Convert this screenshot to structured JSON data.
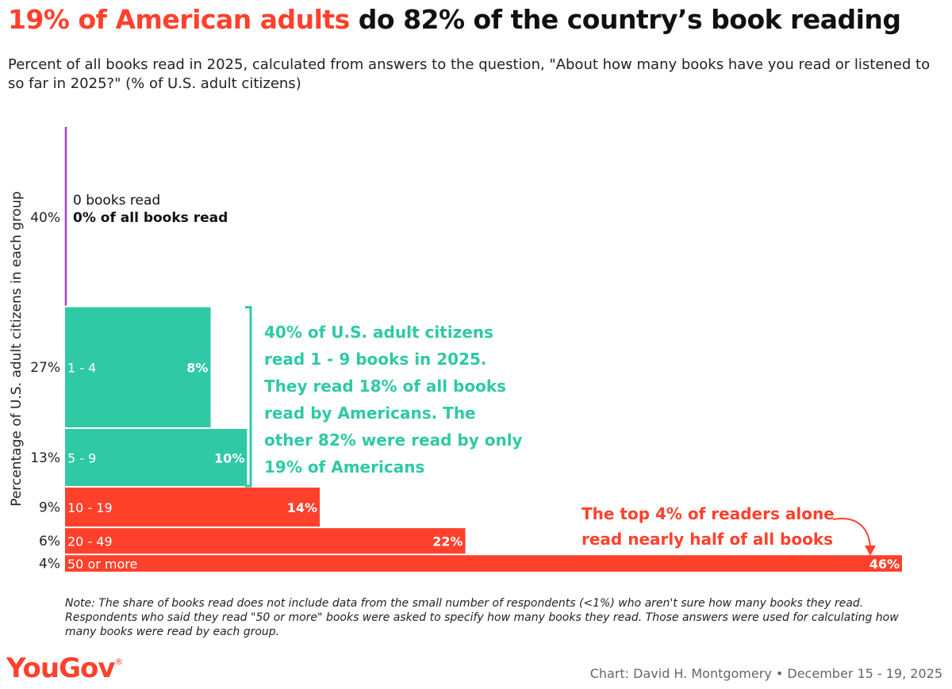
{
  "header": {
    "title_highlight": "19% of American adults",
    "title_rest": " do 82% of the country’s book reading",
    "subtitle": "Percent of all books read in 2025, calculated from answers to the question, \"About how many books have you read or listened to so far in 2025?\" (% of U.S. adult citizens)"
  },
  "colors": {
    "accent_red": "#ff412c",
    "teal": "#2fc9a5",
    "purple": "#a33fd6"
  },
  "chart_data": {
    "type": "bar",
    "title": "19% of American adults do 82% of the country’s book reading",
    "ylabel": "Percentage of U.S. adult citizens in each group",
    "bar_height_represents": "share of U.S. adult citizens in each group",
    "bar_width_represents": "share of all books read",
    "categories": [
      "0 books read",
      "1 - 4",
      "5 - 9",
      "10 - 19",
      "20 - 49",
      "50 or more"
    ],
    "share_of_adults": [
      40,
      27,
      13,
      9,
      6,
      4
    ],
    "share_of_adults_labels": [
      "40%",
      "27%",
      "13%",
      "9%",
      "6%",
      "4%"
    ],
    "share_of_books": [
      0,
      8,
      10,
      14,
      22,
      46
    ],
    "share_of_books_labels": [
      "0% of all books read",
      "8%",
      "10%",
      "14%",
      "22%",
      "46%"
    ],
    "group_colors": [
      "#a33fd6",
      "#2fc9a5",
      "#2fc9a5",
      "#ff412c",
      "#ff412c",
      "#ff412c"
    ]
  },
  "annotations": {
    "green": "40% of U.S. adult citizens read 1 - 9 books in 2025. They read 18% of all books read by Americans. The other 82% were read by only 19% of Americans",
    "red": "The top 4% of readers alone read nearly half of all books"
  },
  "footer": {
    "note": "Note: The share of books read does not include data from the small number of respondents (<1%) who aren't sure how many books they read. Respondents who said they read \"50 or more\" books were asked to specify how many books they read. Those answers were used for calculating how many books were read by each group.",
    "logo_text": "YouGov",
    "logo_mark": "®",
    "credit": "Chart: David H. Montgomery • December 15 - 19, 2025"
  }
}
